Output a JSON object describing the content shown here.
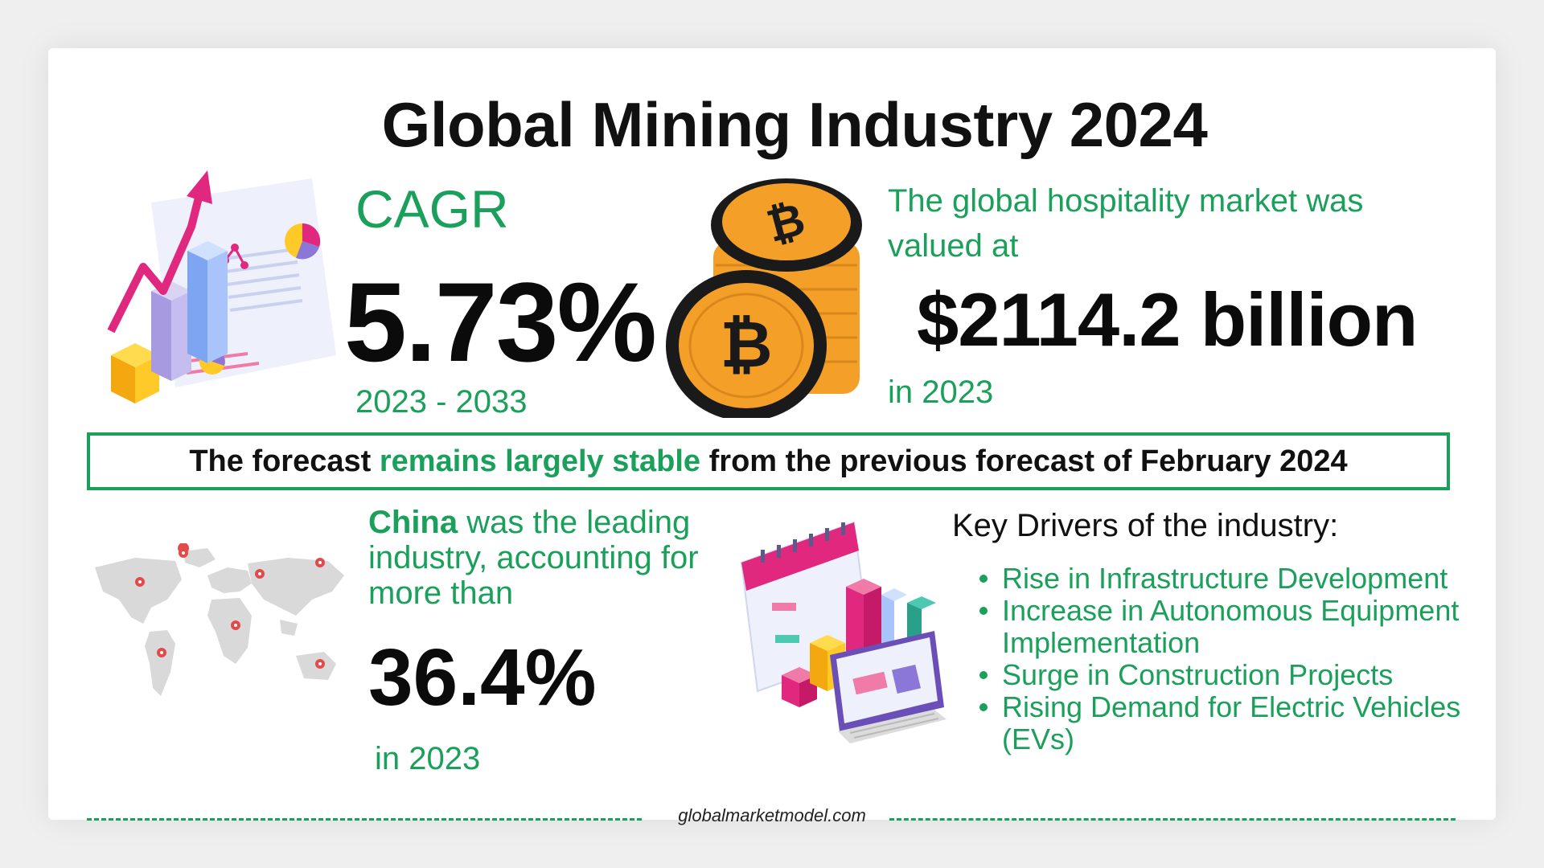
{
  "title": "Global Mining Industry 2024",
  "cagr": {
    "label": "CAGR",
    "value": "5.73%",
    "period": "2023 - 2033"
  },
  "market": {
    "text": "The global hospitality market was valued at",
    "value": "$2114.2 billion",
    "year": "in 2023"
  },
  "forecast": {
    "prefix": "The forecast",
    "highlight": "remains largely stable",
    "suffix": "from the previous forecast of February 2024"
  },
  "leader": {
    "country": "China",
    "text": "was the leading industry, accounting for more than",
    "value": "36.4%",
    "year": "in 2023"
  },
  "drivers": {
    "title": "Key Drivers of the industry:",
    "items": [
      "Rise in Infrastructure Development",
      "Increase in Autonomous Equipment Implementation",
      "Surge in Construction Projects",
      "Rising Demand for Electric Vehicles (EVs)"
    ]
  },
  "footer": {
    "site": "globalmarketmodel.com"
  },
  "colors": {
    "accent_green": "#1aa05b",
    "coin_orange": "#f4a028",
    "coin_dark": "#1a1a1a",
    "magenta": "#e0287f"
  },
  "icons": {
    "growth_chart": "growth-chart-illustration",
    "bitcoin_coins": "bitcoin-coins-illustration",
    "world_map": "world-map-illustration",
    "calendar_dashboard": "calendar-dashboard-illustration"
  }
}
